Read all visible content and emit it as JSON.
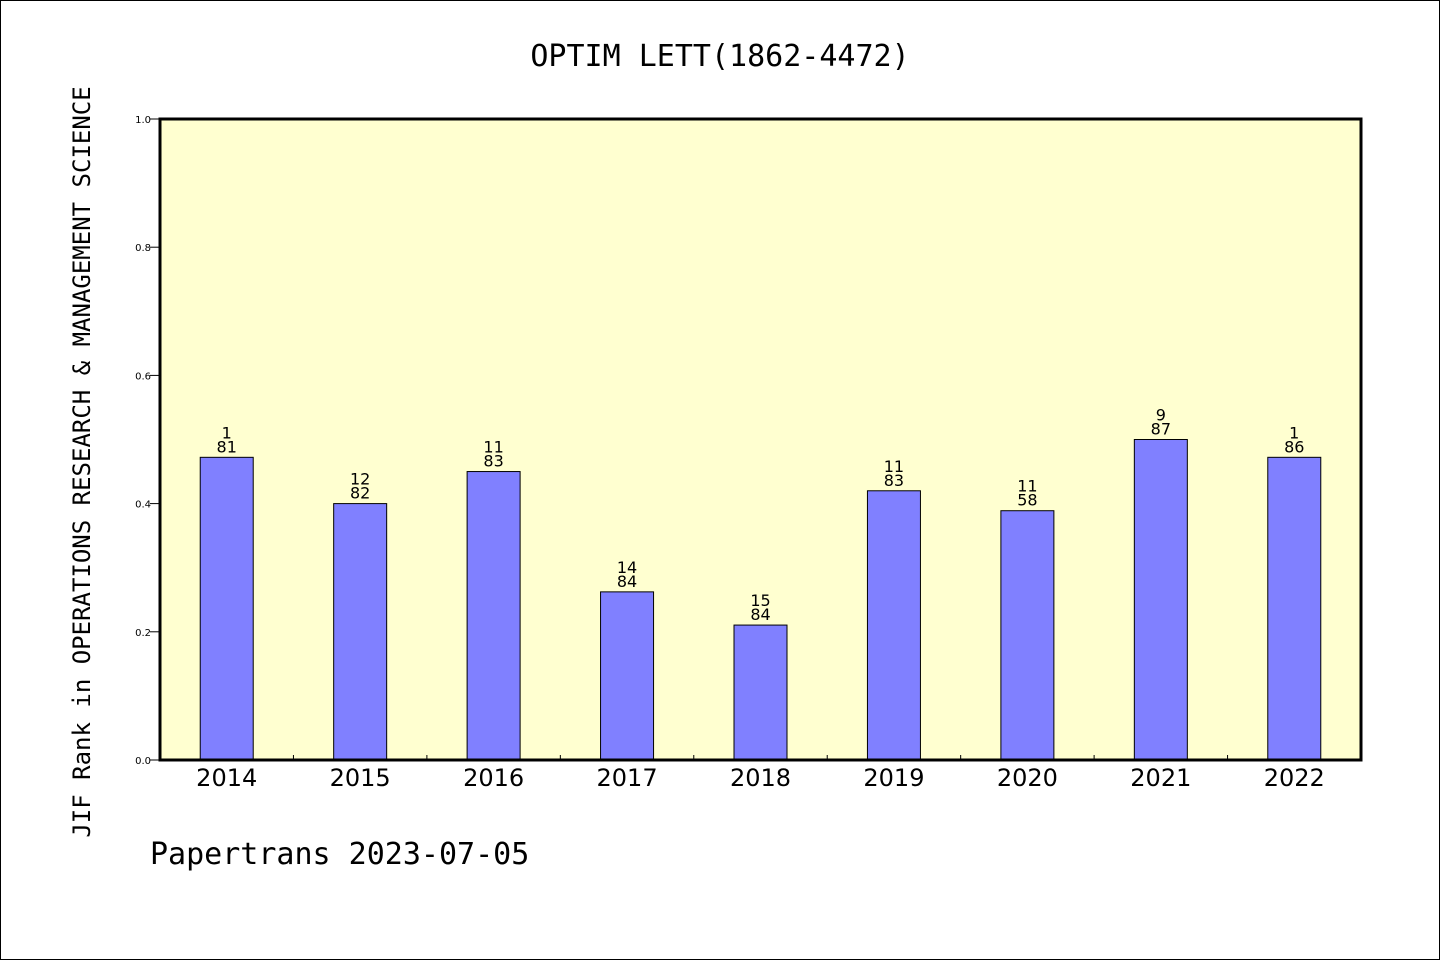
{
  "chart_data": {
    "type": "bar",
    "title": "OPTIM LETT(1862-4472)",
    "ylabel": "JIF Rank in OPERATIONS RESEARCH & MANAGEMENT SCIENCE",
    "xlabel": "",
    "ylim": [
      0,
      1
    ],
    "yticks": [
      "0.0",
      "0.2",
      "0.4",
      "0.6",
      "0.8",
      "1.0"
    ],
    "categories": [
      "2014",
      "2015",
      "2016",
      "2017",
      "2018",
      "2019",
      "2020",
      "2021",
      "2022"
    ],
    "values": [
      0.4722,
      0.4,
      0.45,
      0.2623,
      0.2105,
      0.42,
      0.3889,
      0.5,
      0.4722
    ],
    "rank": [
      "1",
      "12",
      "11",
      "14",
      "15",
      "11",
      "11",
      "9",
      "1"
    ],
    "total": [
      "81",
      "82",
      "83",
      "84",
      "84",
      "83",
      "58",
      "87",
      "86"
    ],
    "grid": false,
    "legend": "none",
    "colors": {
      "bar": "#8080ff",
      "plot_bg": "#ffffd0",
      "bar_edge": "#000000"
    }
  },
  "footer": "Papertrans 2023-07-05"
}
